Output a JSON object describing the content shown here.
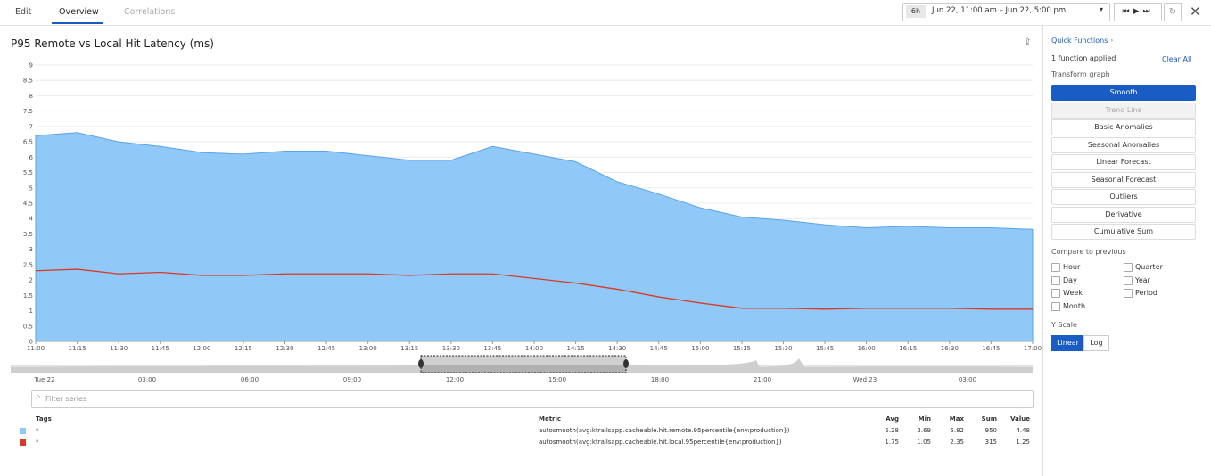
{
  "tabs": [
    "Edit",
    "Overview",
    "Correlations"
  ],
  "time": {
    "span": "6h",
    "range": "Jun 22, 11:00 am – Jun 22, 5:00 pm"
  },
  "chart_data": {
    "type": "area",
    "title": "P95 Remote vs Local Hit Latency (ms)",
    "x": [
      "11:00",
      "11:15",
      "11:30",
      "11:45",
      "12:00",
      "12:15",
      "12:30",
      "12:45",
      "13:00",
      "13:15",
      "13:30",
      "13:45",
      "14:00",
      "14:15",
      "14:30",
      "14:45",
      "15:00",
      "15:15",
      "15:30",
      "15:45",
      "16:00",
      "16:15",
      "16:30",
      "16:45",
      "17:00"
    ],
    "series": [
      {
        "name": "autosmooth(avg:ktrailsapp.cacheable.hit.remote.95percentile{env:production})",
        "color": "#90c8f8",
        "style": "area",
        "values": [
          6.7,
          6.8,
          6.5,
          6.35,
          6.15,
          6.1,
          6.2,
          6.2,
          6.05,
          5.9,
          5.9,
          6.35,
          6.1,
          5.85,
          5.2,
          4.8,
          4.35,
          4.05,
          3.95,
          3.8,
          3.7,
          3.75,
          3.7,
          3.7,
          3.65
        ]
      },
      {
        "name": "autosmooth(avg:ktrailsapp.cacheable.hit.local.95percentile{env:production})",
        "color": "#d93a26",
        "style": "line",
        "values": [
          2.3,
          2.35,
          2.2,
          2.25,
          2.15,
          2.15,
          2.2,
          2.2,
          2.2,
          2.15,
          2.2,
          2.2,
          2.05,
          1.9,
          1.7,
          1.45,
          1.25,
          1.08,
          1.08,
          1.05,
          1.08,
          1.08,
          1.08,
          1.05,
          1.05
        ]
      }
    ],
    "ylim": [
      0,
      9
    ],
    "yticks": [
      0,
      0.5,
      1,
      1.5,
      2,
      2.5,
      3,
      3.5,
      4,
      4.5,
      5,
      5.5,
      6,
      6.5,
      7,
      7.5,
      8,
      8.5,
      9
    ],
    "grid": true
  },
  "overview_labels": [
    "Tue 22",
    "03:00",
    "06:00",
    "09:00",
    "12:00",
    "15:00",
    "18:00",
    "21:00",
    "Wed 23",
    "03:00"
  ],
  "filter_placeholder": "Filter series",
  "table": {
    "header": [
      "Tags",
      "Metric",
      "Avg",
      "Min",
      "Max",
      "Sum",
      "Value"
    ],
    "rows": [
      [
        "*",
        "autosmooth(avg:ktrailsapp.cacheable.hit.remote.95percentile{env:production})",
        5.28,
        3.69,
        6.82,
        950,
        4.48
      ],
      [
        "*",
        "autosmooth(avg:ktrailsapp.cacheable.hit.local.95percentile{env:production})",
        1.75,
        1.05,
        2.35,
        315,
        1.25
      ]
    ]
  },
  "panel": {
    "title": "Quick Functions",
    "applied": "1 function applied",
    "clear": "Clear All",
    "transform_label": "Transform graph",
    "functions": [
      "Smooth",
      "Trend Line",
      "Basic Anomalies",
      "Seasonal Anomalies",
      "Linear Forecast",
      "Seasonal Forecast",
      "Outliers",
      "Derivative",
      "Cumulative Sum"
    ],
    "compare_label": "Compare to previous",
    "compare": [
      "Hour",
      "Quarter",
      "Day",
      "Year",
      "Week",
      "Period",
      "Month"
    ],
    "yscale_label": "Y Scale",
    "yscale": [
      "Linear",
      "Log"
    ]
  }
}
